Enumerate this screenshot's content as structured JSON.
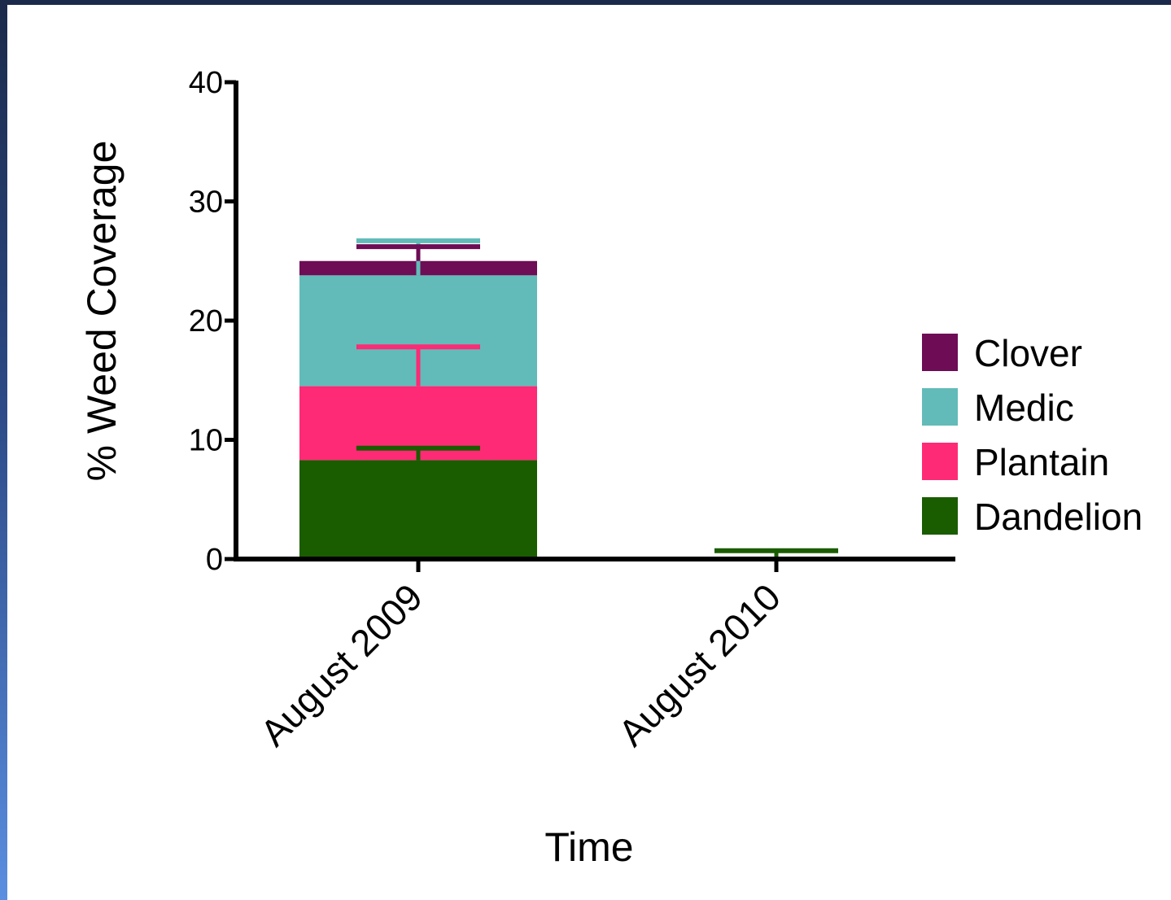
{
  "chart_data": {
    "type": "bar",
    "stacked": true,
    "categories": [
      "August 2009",
      "August 2010"
    ],
    "series": [
      {
        "name": "Dandelion",
        "color": "#1a5c00",
        "values": [
          8.3,
          0.2
        ],
        "error": [
          1.0,
          0.5
        ]
      },
      {
        "name": "Plantain",
        "color": "#ff2a75",
        "values": [
          6.2,
          0.0
        ],
        "error": [
          3.3,
          0.0
        ]
      },
      {
        "name": "Medic",
        "color": "#62bbb8",
        "values": [
          9.3,
          0.0
        ],
        "error": [
          2.9,
          0.0
        ]
      },
      {
        "name": "Clover",
        "color": "#6e0c55",
        "values": [
          1.2,
          0.0
        ],
        "error": [
          1.2,
          0.0
        ]
      }
    ],
    "legend_order": [
      "Clover",
      "Medic",
      "Plantain",
      "Dandelion"
    ],
    "legend_position": "right",
    "yticks": [
      0,
      10,
      20,
      30,
      40
    ],
    "ylim": [
      0,
      40
    ],
    "xlabel": "Time",
    "ylabel": "% Weed Coverage",
    "grid": false
  }
}
